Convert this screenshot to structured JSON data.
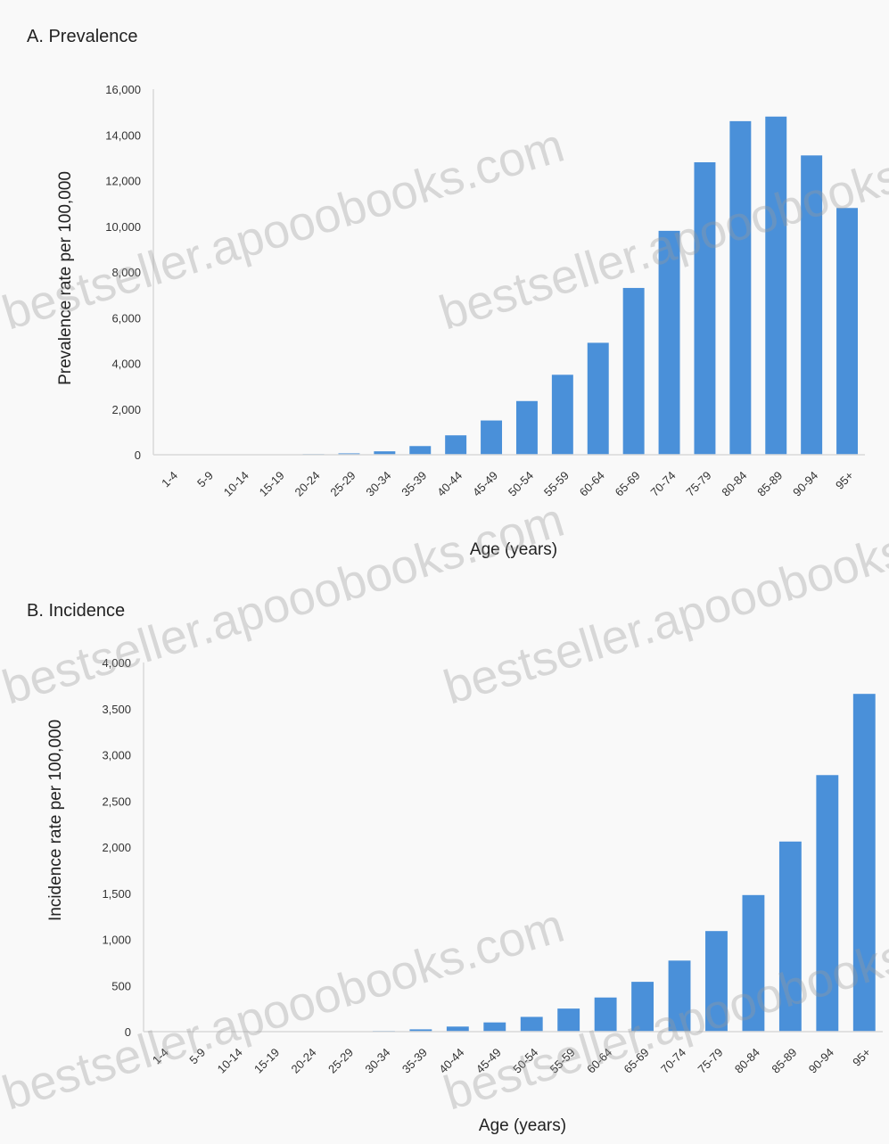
{
  "colors": {
    "bar": "#4a90d9",
    "axis": "#d9d9d9",
    "background": "#f9f9f9"
  },
  "watermark": "bestseller.apooobooks.com",
  "chart_data": [
    {
      "type": "bar",
      "title": "A. Prevalence",
      "xlabel": "Age (years)",
      "ylabel": "Prevalence rate per 100,000",
      "ylim": [
        0,
        16000
      ],
      "yticks": [
        "0",
        "2,000",
        "4,000",
        "6,000",
        "8,000",
        "10,000",
        "12,000",
        "14,000",
        "16,000"
      ],
      "categories": [
        "1-4",
        "5-9",
        "10-14",
        "15-19",
        "20-24",
        "25-29",
        "30-34",
        "35-39",
        "40-44",
        "45-49",
        "50-54",
        "55-59",
        "60-64",
        "65-69",
        "70-74",
        "75-79",
        "80-84",
        "85-89",
        "90-94",
        "95+"
      ],
      "values": [
        0,
        0,
        0,
        0,
        30,
        60,
        150,
        380,
        850,
        1500,
        2350,
        3500,
        4900,
        7300,
        9800,
        12800,
        14600,
        14800,
        13100,
        10800
      ],
      "grid": false,
      "legend": "none"
    },
    {
      "type": "bar",
      "title": "B. Incidence",
      "xlabel": "Age (years)",
      "ylabel": "Incidence rate per 100,000",
      "ylim": [
        0,
        4000
      ],
      "yticks": [
        "0",
        "500",
        "1,000",
        "1,500",
        "2,000",
        "2,500",
        "3,000",
        "3,500",
        "4,000"
      ],
      "categories": [
        "1-4",
        "5-9",
        "10-14",
        "15-19",
        "20-24",
        "25-29",
        "30-34",
        "35-39",
        "40-44",
        "45-49",
        "50-54",
        "55-59",
        "60-64",
        "65-69",
        "70-74",
        "75-79",
        "80-84",
        "85-89",
        "90-94",
        "95+"
      ],
      "values": [
        0,
        0,
        0,
        0,
        0,
        0,
        8,
        25,
        55,
        100,
        160,
        250,
        370,
        540,
        770,
        1090,
        1480,
        2060,
        2780,
        3660
      ],
      "grid": false,
      "legend": "none"
    }
  ]
}
